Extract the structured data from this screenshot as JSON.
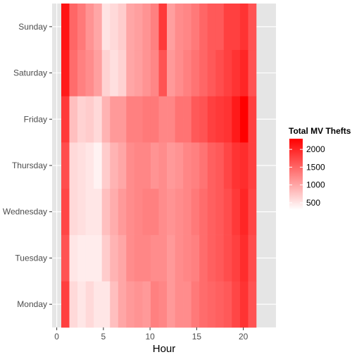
{
  "chart_data": {
    "type": "heatmap",
    "xlabel": "Hour",
    "ylabel": "",
    "x": [
      0,
      1,
      2,
      3,
      4,
      5,
      6,
      7,
      8,
      9,
      10,
      11,
      12,
      13,
      14,
      15,
      16,
      17,
      18,
      19,
      20,
      21,
      22,
      23
    ],
    "x_ticks": [
      0,
      5,
      10,
      15,
      20
    ],
    "xlim": [
      -0.5,
      23.5
    ],
    "y": [
      "Monday",
      "Tuesday",
      "Wednesday",
      "Thursday",
      "Friday",
      "Saturday",
      "Sunday"
    ],
    "legend": {
      "title": "Total MV Thefts",
      "ticks": [
        500,
        1000,
        1500,
        2000
      ],
      "range": [
        300,
        2300
      ],
      "low_color": "#ffffff",
      "high_color": "#ff0000",
      "placement": "right"
    },
    "grid": true,
    "values": {
      "Sunday": [
        2150,
        1500,
        1350,
        1150,
        1000,
        520,
        600,
        700,
        1000,
        1050,
        1150,
        1300,
        1850,
        1050,
        1200,
        1250,
        1350,
        1500,
        1600,
        1600,
        1800,
        1800,
        1900,
        1650
      ],
      "Saturday": [
        2100,
        1450,
        1300,
        1200,
        1050,
        650,
        550,
        650,
        1000,
        1050,
        1150,
        1250,
        1650,
        1100,
        1200,
        1300,
        1400,
        1500,
        1600,
        1700,
        1800,
        1900,
        2000,
        1650
      ],
      "Friday": [
        1850,
        800,
        650,
        700,
        600,
        900,
        1100,
        1100,
        1300,
        1300,
        1350,
        1350,
        1250,
        1250,
        1400,
        1400,
        1600,
        1650,
        1800,
        1850,
        1900,
        2100,
        2300,
        1800
      ],
      "Thursday": [
        1700,
        600,
        550,
        500,
        400,
        700,
        900,
        1000,
        1200,
        1250,
        1250,
        1150,
        1200,
        1100,
        1150,
        1250,
        1300,
        1400,
        1550,
        1600,
        1750,
        1900,
        1950,
        1800
      ],
      "Wednesday": [
        1750,
        600,
        550,
        500,
        500,
        800,
        950,
        1100,
        1200,
        1250,
        1300,
        1300,
        1200,
        1150,
        1200,
        1250,
        1350,
        1450,
        1550,
        1600,
        1700,
        1850,
        2000,
        1750
      ],
      "Tuesday": [
        1650,
        500,
        450,
        450,
        450,
        700,
        900,
        1000,
        1200,
        1250,
        1250,
        1200,
        1200,
        1100,
        1200,
        1250,
        1300,
        1450,
        1550,
        1600,
        1700,
        1800,
        1950,
        1700
      ],
      "Monday": [
        1800,
        600,
        500,
        600,
        500,
        500,
        800,
        1000,
        1100,
        1150,
        1100,
        1300,
        1250,
        1100,
        1200,
        1200,
        1350,
        1450,
        1500,
        1550,
        1600,
        1750,
        1900,
        1650
      ]
    }
  }
}
